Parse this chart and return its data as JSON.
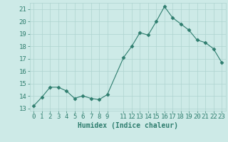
{
  "x": [
    0,
    1,
    2,
    3,
    4,
    5,
    6,
    7,
    8,
    9,
    11,
    12,
    13,
    14,
    15,
    16,
    17,
    18,
    19,
    20,
    21,
    22,
    23
  ],
  "y": [
    13.2,
    13.9,
    14.7,
    14.7,
    14.4,
    13.8,
    14.0,
    13.8,
    13.7,
    14.1,
    17.1,
    18.0,
    19.1,
    18.9,
    20.0,
    21.2,
    20.3,
    19.8,
    19.3,
    18.5,
    18.3,
    17.8,
    16.7
  ],
  "line_color": "#2e7d6e",
  "marker": "D",
  "marker_size": 2.5,
  "bg_color": "#cdeae7",
  "grid_color": "#aed4d0",
  "xlabel": "Humidex (Indice chaleur)",
  "xticks": [
    0,
    1,
    2,
    3,
    4,
    5,
    6,
    7,
    8,
    9,
    11,
    12,
    13,
    14,
    15,
    16,
    17,
    18,
    19,
    20,
    21,
    22,
    23
  ],
  "yticks": [
    13,
    14,
    15,
    16,
    17,
    18,
    19,
    20,
    21
  ],
  "ylim": [
    12.8,
    21.5
  ],
  "xlim": [
    -0.5,
    23.5
  ],
  "tick_color": "#2e7d6e",
  "label_color": "#2e7d6e",
  "font_size": 6.5
}
